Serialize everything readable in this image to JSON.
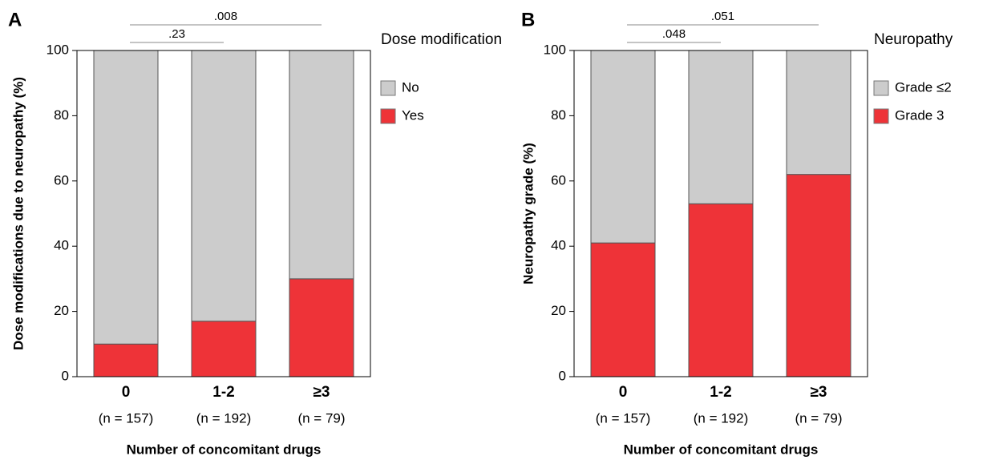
{
  "chart_data": [
    {
      "type": "stacked_bar",
      "panel": "A",
      "ylabel": "Dose modifications due to neuropathy (%)",
      "xlabel": "Number of concomitant drugs",
      "categories": [
        "0",
        "1-2",
        "≥3"
      ],
      "category_notes": [
        "(n = 157)",
        "(n = 192)",
        "(n = 79)"
      ],
      "legend_title": "Dose modification",
      "series": [
        {
          "name": "No",
          "color": "#cccccc",
          "values": [
            90,
            83,
            70
          ]
        },
        {
          "name": "Yes",
          "color": "#ee3338",
          "values": [
            10,
            17,
            30
          ]
        }
      ],
      "ylim": [
        0,
        100
      ],
      "yticks": [
        0,
        20,
        40,
        60,
        80,
        100
      ],
      "annotations": [
        {
          "text": ".23",
          "between": [
            0,
            1
          ]
        },
        {
          "text": ".008",
          "between": [
            0,
            2
          ]
        }
      ]
    },
    {
      "type": "stacked_bar",
      "panel": "B",
      "ylabel": "Neuropathy  grade (%)",
      "xlabel": "Number of concomitant drugs",
      "categories": [
        "0",
        "1-2",
        "≥3"
      ],
      "category_notes": [
        "(n = 157)",
        "(n = 192)",
        "(n = 79)"
      ],
      "legend_title": "Neuropathy",
      "series": [
        {
          "name": "Grade ≤2",
          "color": "#cccccc",
          "values": [
            59,
            47,
            38
          ]
        },
        {
          "name": "Grade 3",
          "color": "#ee3338",
          "values": [
            41,
            53,
            62
          ]
        }
      ],
      "ylim": [
        0,
        100
      ],
      "yticks": [
        0,
        20,
        40,
        60,
        80,
        100
      ],
      "annotations": [
        {
          "text": ".048",
          "between": [
            0,
            1
          ]
        },
        {
          "text": ".051",
          "between": [
            0,
            2
          ]
        }
      ]
    }
  ]
}
